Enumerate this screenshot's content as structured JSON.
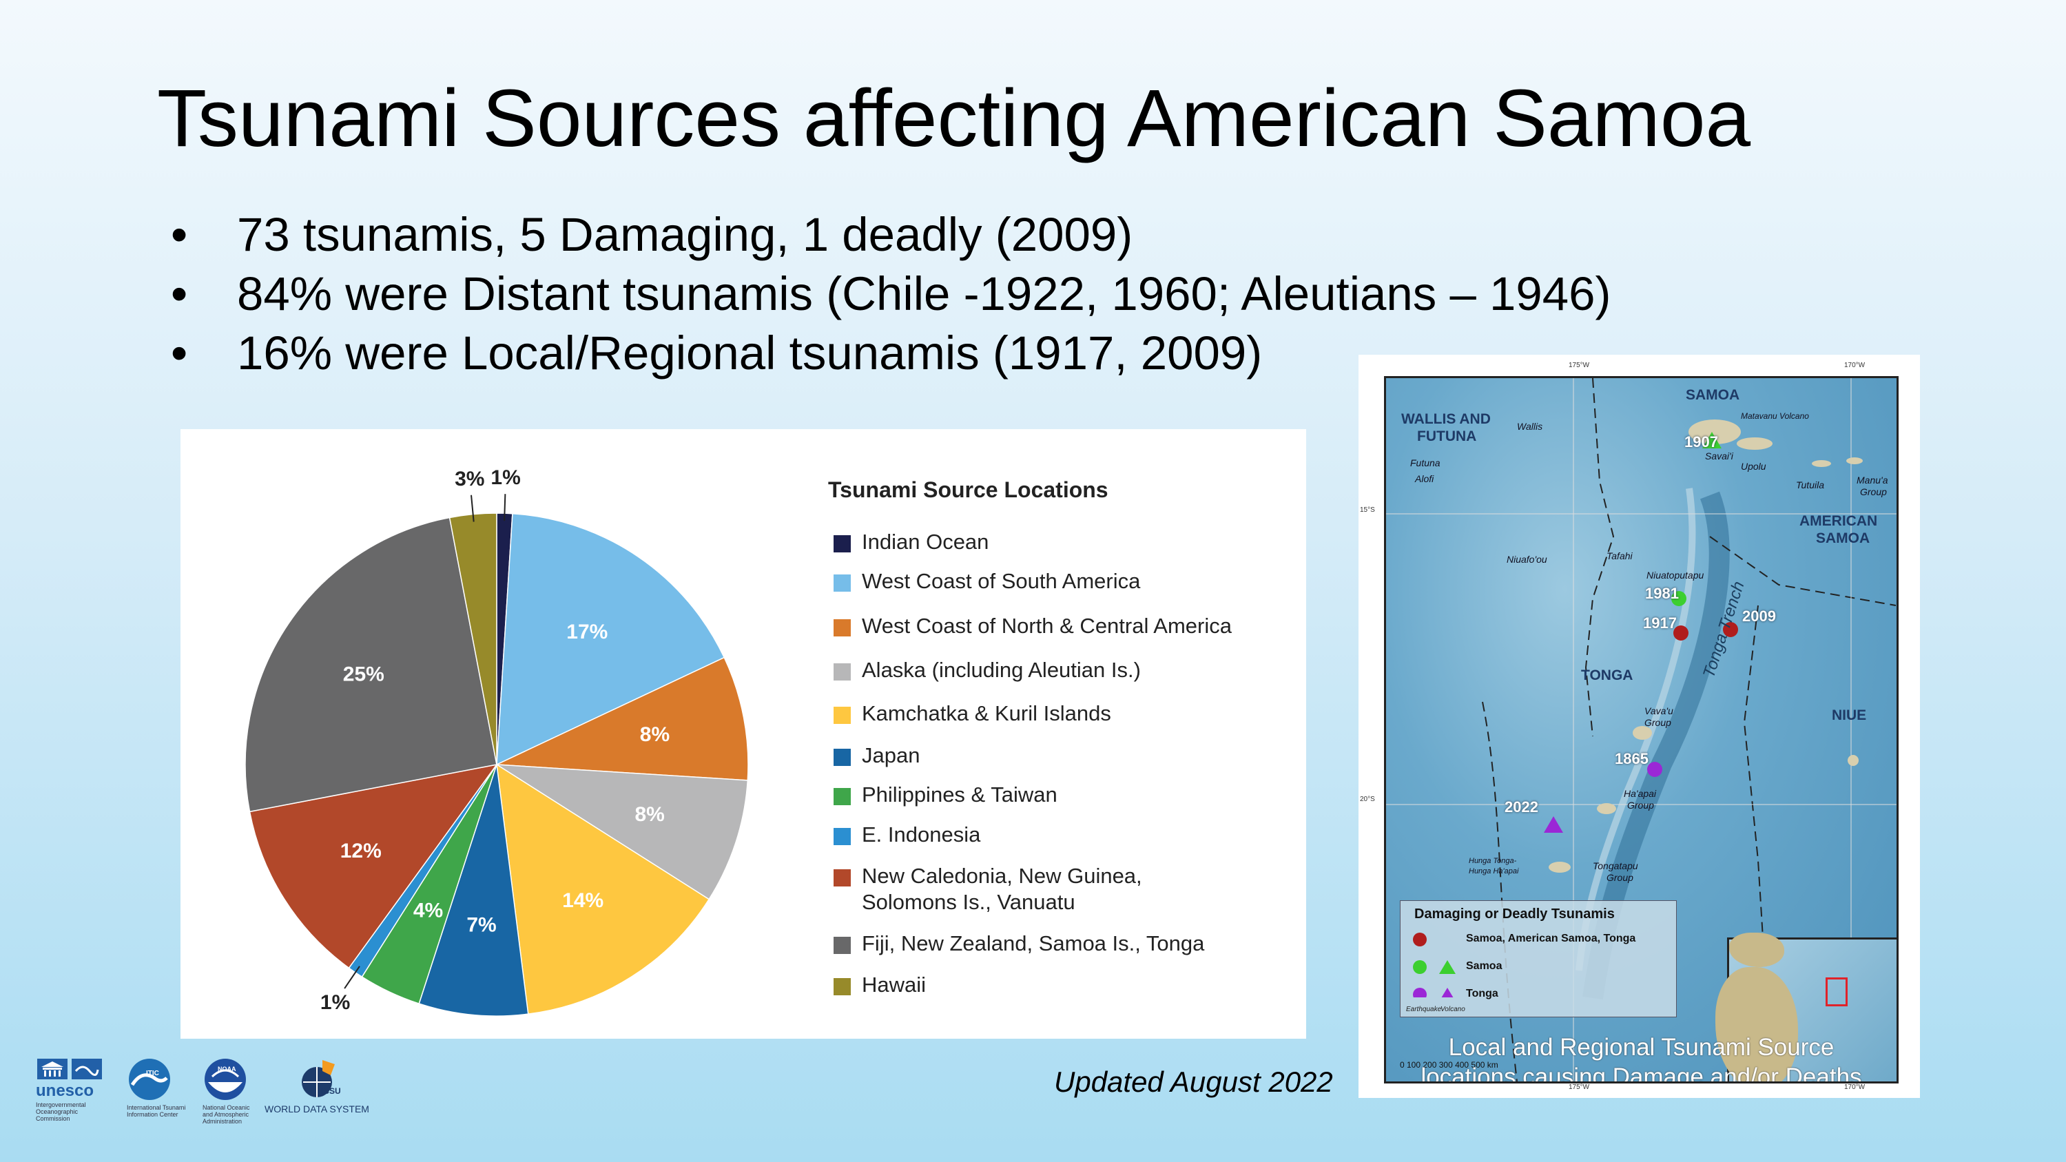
{
  "slide": {
    "title": "Tsunami Sources affecting American Samoa",
    "bullet_marker": "•",
    "bullets": [
      "73 tsunamis, 5 Damaging, 1 deadly (2009)",
      "84% were Distant tsunamis (Chile -1922, 1960; Aleutians – 1946)",
      "16% were Local/Regional tsunamis (1917, 2009)"
    ],
    "updated": "Updated August 2022"
  },
  "chart_data": {
    "type": "pie",
    "title": "Tsunami Source Locations",
    "start_angle_deg": 0,
    "direction": "clockwise",
    "slices": [
      {
        "name": "Indian Ocean",
        "value": 1,
        "label": "1%",
        "color": "#1b1f4d"
      },
      {
        "name": "West Coast of South America",
        "value": 17,
        "label": "17%",
        "color": "#76bde9"
      },
      {
        "name": "West Coast of North & Central America",
        "value": 8,
        "label": "8%",
        "color": "#d97a2b"
      },
      {
        "name": "Alaska (including Aleutian Is.)",
        "value": 8,
        "label": "8%",
        "color": "#b7b7b8"
      },
      {
        "name": "Kamchatka & Kuril Islands",
        "value": 14,
        "label": "14%",
        "color": "#fec740"
      },
      {
        "name": "Japan",
        "value": 7,
        "label": "7%",
        "color": "#1866a4"
      },
      {
        "name": "Philippines & Taiwan",
        "value": 4,
        "label": "4%",
        "color": "#3fa64a"
      },
      {
        "name": "E. Indonesia",
        "value": 1,
        "label": "1%",
        "color": "#2b8fd1"
      },
      {
        "name": "New Caledonia, New Guinea, Solomons Is., Vanuatu",
        "value": 12,
        "label": "12%",
        "color": "#b2482a"
      },
      {
        "name": "Fiji, New Zealand, Samoa Is., Tonga",
        "value": 25,
        "label": "25%",
        "color": "#686869"
      },
      {
        "name": "Hawaii",
        "value": 3,
        "label": "3%",
        "color": "#978a2a"
      }
    ],
    "legend_lines": [
      [
        "Indian Ocean"
      ],
      [
        "West Coast of South America"
      ],
      [
        "West Coast of North & Central America"
      ],
      [
        "Alaska (including Aleutian Is.)"
      ],
      [
        "Kamchatka & Kuril Islands"
      ],
      [
        "Japan"
      ],
      [
        "Philippines & Taiwan"
      ],
      [
        "E. Indonesia"
      ],
      [
        "New Caledonia, New Guinea,",
        "Solomons Is., Vanuatu"
      ],
      [
        "Fiji, New Zealand, Samoa Is., Tonga"
      ],
      [
        "Hawaii"
      ]
    ]
  },
  "map": {
    "regions": {
      "samoa": "SAMOA",
      "wallis_futuna_1": "WALLIS AND",
      "wallis_futuna_2": "FUTUNA",
      "american_samoa_1": "AMERICAN",
      "american_samoa_2": "SAMOA",
      "tonga": "TONGA",
      "niue": "NIUE"
    },
    "places": {
      "wallis": "Wallis",
      "futuna": "Futuna",
      "alofi": "Alofi",
      "matavanu": "Matavanu Volcano",
      "savaii": "Savai'i",
      "upolu": "Upolu",
      "tutuila": "Tutuila",
      "manua_1": "Manu'a",
      "manua_2": "Group",
      "niuafoou": "Niuafo'ou",
      "tafahi": "Tafahi",
      "niuatoputapu": "Niuatoputapu",
      "vavau_1": "Vava'u",
      "vavau_2": "Group",
      "haapai_1": "Ha'apai",
      "haapai_2": "Group",
      "hunga_1": "Hunga Tonga-",
      "hunga_2": "Hunga Ha'apai",
      "tongatapu_1": "Tongatapu",
      "tongatapu_2": "Group",
      "trench": "Tonga Trench"
    },
    "events": [
      "1907",
      "1981",
      "1917",
      "2009",
      "1865",
      "2022"
    ],
    "legend": {
      "title": "Damaging or Deadly Tsunamis",
      "rows": [
        "Samoa, American Samoa, Tonga",
        "Samoa",
        "Tonga"
      ],
      "earthquake": "Earthquake",
      "volcano": "Volcano",
      "colors": {
        "red": "#b01d1d",
        "green": "#3ccf2f",
        "purple": "#9b27d6"
      }
    },
    "scale": "0      100     200     300     400     500 km",
    "ticks": {
      "lon_left": "175°W",
      "lon_right": "170°W",
      "lat_top": "15°S",
      "lat_bottom": "20°S"
    },
    "caption_1": "Local and Regional Tsunami Source",
    "caption_2": "locations causing Damage and/or Deaths"
  },
  "logos": {
    "unesco": "unesco",
    "unesco_sub_1": "Intergovernmental",
    "unesco_sub_2": "Oceanographic",
    "unesco_sub_3": "Commission",
    "itic": "ITIC",
    "itic_sub_1": "International Tsunami",
    "itic_sub_2": "Information Center",
    "noaa": "NOAA",
    "noaa_sub_1": "National Oceanic",
    "noaa_sub_2": "and Atmospheric",
    "noaa_sub_3": "Administration",
    "icsu": "ICSU",
    "wds": "WORLD DATA SYSTEM"
  }
}
